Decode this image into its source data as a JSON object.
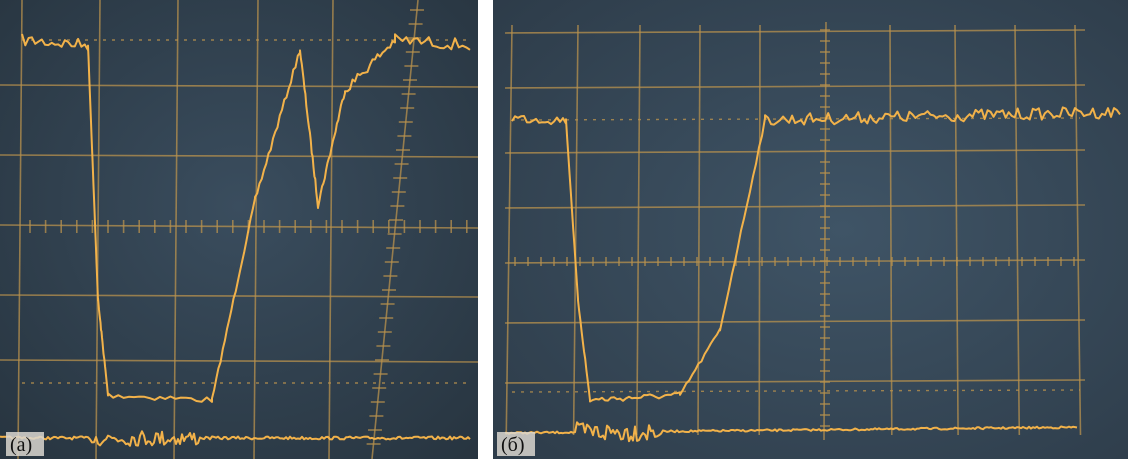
{
  "panels": [
    {
      "label": "(а)"
    },
    {
      "label": "(б)"
    }
  ]
}
